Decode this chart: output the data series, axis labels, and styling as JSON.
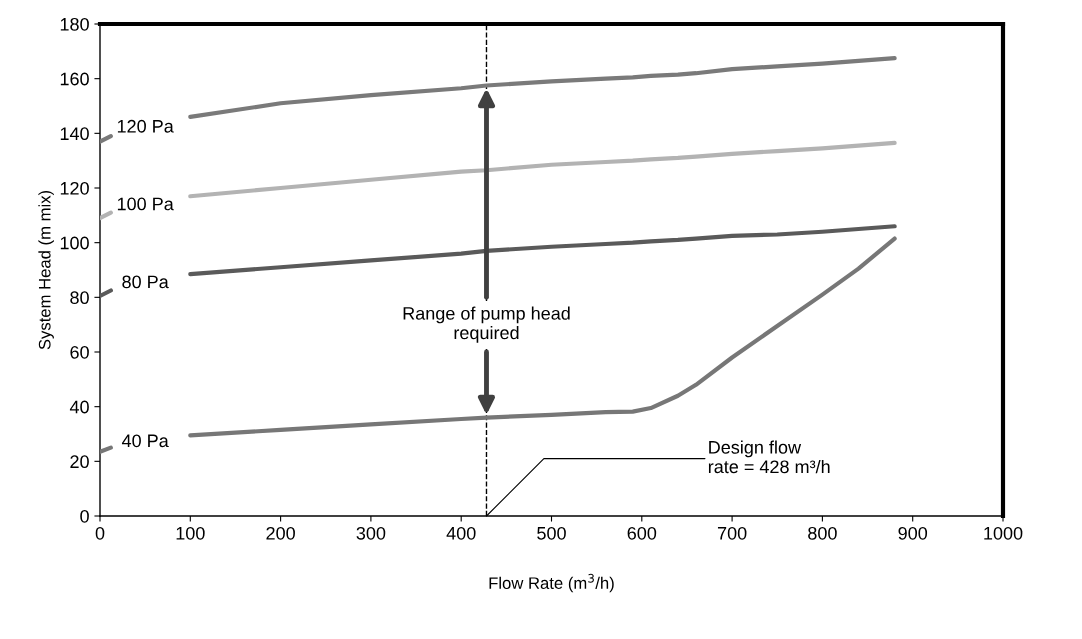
{
  "chart_data": {
    "type": "line",
    "xlabel": "Flow Rate (m$^{3}$/h)",
    "ylabel": "System Head (m mix)",
    "x": [
      0,
      12,
      50,
      100,
      200,
      300,
      400,
      428,
      500,
      560,
      590,
      610,
      640,
      660,
      700,
      750,
      800,
      840,
      880
    ],
    "series": [
      {
        "name": "120 Pa",
        "color": "#7a7a7a",
        "values": [
          137,
          139,
          null,
          146,
          151,
          154,
          156.5,
          157.5,
          159,
          160,
          160.5,
          161,
          161.5,
          162,
          163.5,
          164.5,
          165.5,
          166.5,
          167.5
        ]
      },
      {
        "name": "100 Pa",
        "color": "#b3b3b3",
        "values": [
          109,
          111,
          null,
          117,
          120,
          123,
          126,
          126.5,
          128.5,
          129.5,
          130,
          130.5,
          131,
          131.5,
          132.5,
          133.5,
          134.5,
          135.5,
          136.5
        ]
      },
      {
        "name": "80 Pa",
        "color": "#5a5a5a",
        "values": [
          80.5,
          82.5,
          null,
          88.5,
          91,
          93.5,
          96,
          97,
          98.5,
          99.5,
          100,
          100.5,
          101,
          101.5,
          102.5,
          103,
          104,
          105,
          106
        ]
      },
      {
        "name": "40 Pa",
        "color": "#777777",
        "values": [
          23.5,
          25,
          null,
          29.5,
          31.5,
          33.5,
          35.5,
          36,
          37,
          38,
          38.2,
          39.5,
          44,
          48,
          58,
          69.5,
          81,
          90.5,
          101.5
        ]
      }
    ],
    "xlim": [
      0,
      1000
    ],
    "xticks": [
      0,
      100,
      200,
      300,
      400,
      500,
      600,
      700,
      800,
      900,
      1000
    ],
    "ylim": [
      0,
      180
    ],
    "yticks": [
      0,
      20,
      40,
      60,
      80,
      100,
      120,
      140,
      160,
      180
    ],
    "ref_lines": [
      {
        "axis": "x",
        "value": 428,
        "color": "#000000",
        "line_style": "dashed"
      }
    ],
    "annotations": [
      {
        "text": "Range of pump head required",
        "x": 428,
        "y": 70
      },
      {
        "text": "Design flow\nrate = 428 m³/h",
        "x": 428,
        "y": 0
      }
    ],
    "grid": false,
    "legend": false,
    "marker": "none",
    "line_style": "solid"
  }
}
